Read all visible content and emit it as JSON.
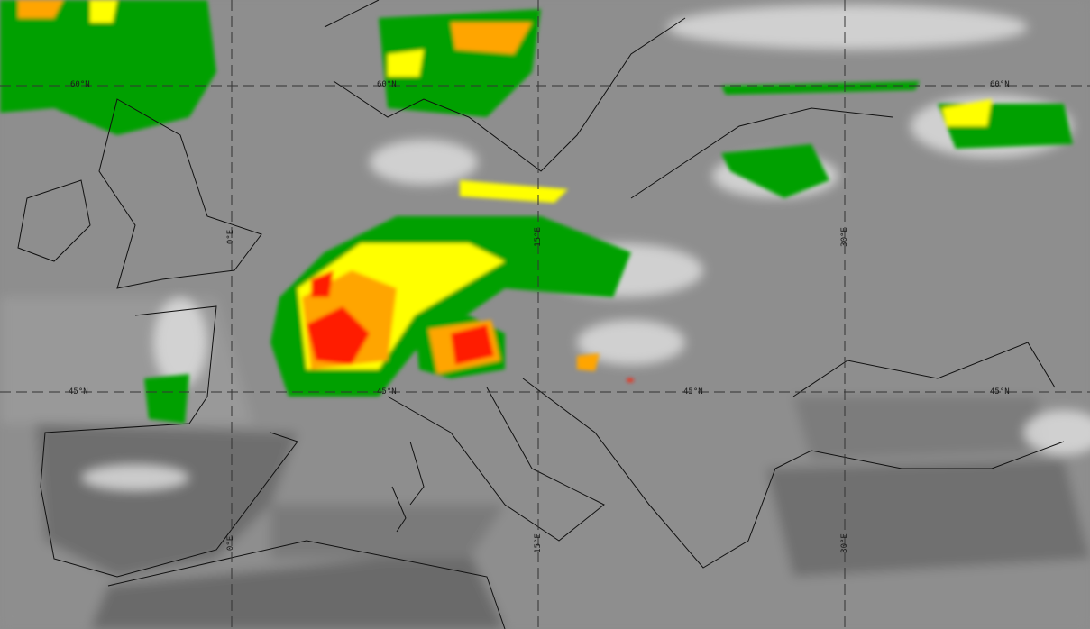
{
  "map": {
    "type": "satellite infrared image with enhanced cloud-top colours",
    "colors": {
      "background": "#8c8c8c",
      "sea": "#7a7a7a",
      "cloud_white": "#e6e6e6",
      "green": "#00a000",
      "yellow": "#ffff00",
      "orange": "#ffa500",
      "red": "#ff1a00",
      "coastline": "#111111",
      "gridline": "#333333"
    },
    "grid_labels": {
      "lat60": [
        "60°N",
        "60°N",
        "60°N"
      ],
      "lat45": [
        "45°N",
        "45°N",
        "45°N",
        "45°N"
      ],
      "lon0": [
        "0°E",
        "0°E"
      ],
      "lon15": [
        "15°E",
        "15°E"
      ],
      "lon30": [
        "30°E",
        "30°E"
      ]
    }
  }
}
